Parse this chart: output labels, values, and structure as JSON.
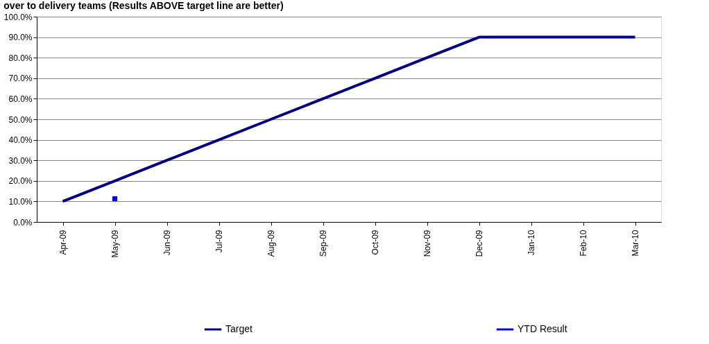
{
  "chart_data": {
    "type": "line",
    "title": "over to delivery teams (Results ABOVE target line are better)",
    "categories": [
      "Apr-09",
      "May-09",
      "Jun-09",
      "Jul-09",
      "Aug-09",
      "Sep-09",
      "Oct-09",
      "Nov-09",
      "Dec-09",
      "Jan-10",
      "Feb-10",
      "Mar-10"
    ],
    "series": [
      {
        "name": "Target",
        "color": "#000080",
        "marker": "none",
        "values": [
          10,
          20,
          30,
          40,
          50,
          60,
          70,
          80,
          90,
          90,
          90,
          90
        ]
      },
      {
        "name": "YTD Result",
        "color": "#0000ff",
        "marker": "square",
        "values": [
          null,
          11.3,
          null,
          null,
          null,
          null,
          null,
          null,
          null,
          null,
          null,
          null
        ]
      }
    ],
    "ylim": [
      0,
      100
    ],
    "yticks": [
      {
        "value": 0,
        "label": "0.0%"
      },
      {
        "value": 10,
        "label": "10.0%"
      },
      {
        "value": 20,
        "label": "20.0%"
      },
      {
        "value": 30,
        "label": "30.0%"
      },
      {
        "value": 40,
        "label": "40.0%"
      },
      {
        "value": 50,
        "label": "50.0%"
      },
      {
        "value": 60,
        "label": "60.0%"
      },
      {
        "value": 70,
        "label": "70.0%"
      },
      {
        "value": 80,
        "label": "80.0%"
      },
      {
        "value": 90,
        "label": "90.0%"
      },
      {
        "value": 100,
        "label": "100.0%"
      }
    ],
    "grid": "y",
    "legend": "bottom",
    "line_style": "solid"
  }
}
